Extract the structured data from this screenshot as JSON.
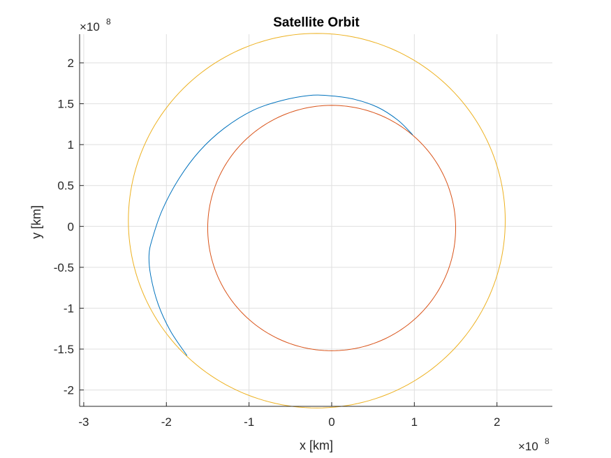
{
  "chart_data": {
    "type": "line",
    "title": "Satellite Orbit",
    "xlabel": "x [km]",
    "ylabel": "y [km]",
    "x_exponent_label": "×10",
    "x_exponent_power": "8",
    "y_exponent_label": "×10",
    "y_exponent_power": "8",
    "xlim": [
      -3.05,
      2.67
    ],
    "ylim": [
      -2.2,
      2.35
    ],
    "x_scale_factor": 100000000,
    "x_ticks": [
      -3,
      -2,
      -1,
      0,
      1,
      2
    ],
    "x_tick_labels": [
      "-3",
      "-2",
      "-1",
      "0",
      "1",
      "2"
    ],
    "y_ticks": [
      -2,
      -1.5,
      -1,
      -0.5,
      0,
      0.5,
      1,
      1.5,
      2
    ],
    "y_tick_labels": [
      "-2",
      "-1.5",
      "-1",
      "-0.5",
      "0",
      "0.5",
      "1",
      "1.5",
      "2"
    ],
    "grid": true,
    "axis_color": "#262626",
    "grid_color": "#dfdfdf",
    "series": [
      {
        "kind": "ellipse",
        "color": "#EDB120",
        "center": [
          -0.18,
          0.07
        ],
        "rx": 2.28,
        "ry": 2.29,
        "theta_start_deg": 0,
        "theta_end_deg": 360
      },
      {
        "kind": "ellipse",
        "color": "#D95319",
        "center": [
          0.0,
          -0.02
        ],
        "rx": 1.5,
        "ry": 1.5,
        "theta_start_deg": 0,
        "theta_end_deg": 360
      },
      {
        "kind": "arc",
        "color": "#0072BD",
        "points": [
          [
            0.98,
            1.12
          ],
          [
            0.8,
            1.3
          ],
          [
            0.55,
            1.46
          ],
          [
            0.25,
            1.56
          ],
          [
            -0.05,
            1.6
          ],
          [
            -0.28,
            1.6
          ],
          [
            -0.6,
            1.54
          ],
          [
            -0.95,
            1.42
          ],
          [
            -1.3,
            1.2
          ],
          [
            -1.6,
            0.92
          ],
          [
            -1.85,
            0.58
          ],
          [
            -2.05,
            0.2
          ],
          [
            -2.17,
            -0.15
          ],
          [
            -2.21,
            -0.35
          ],
          [
            -2.19,
            -0.6
          ],
          [
            -2.1,
            -0.95
          ],
          [
            -1.95,
            -1.28
          ],
          [
            -1.75,
            -1.58
          ]
        ]
      }
    ]
  }
}
